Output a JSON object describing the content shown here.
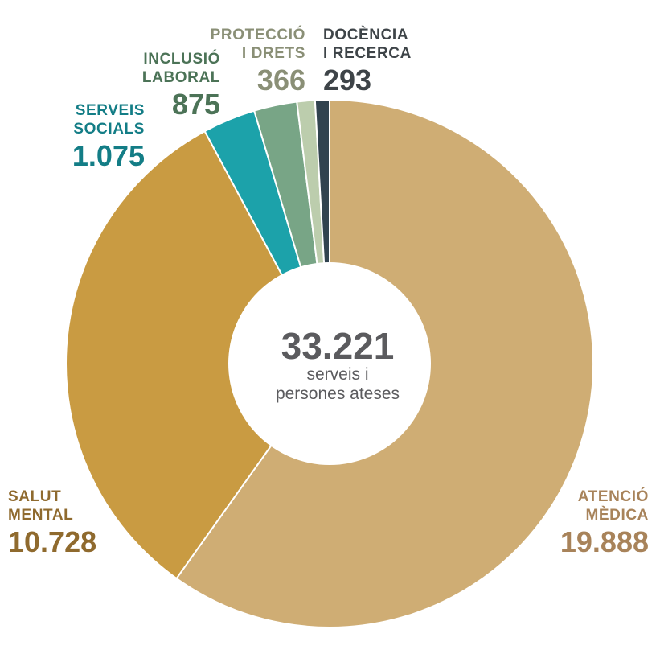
{
  "chart_data": {
    "type": "pie",
    "variant": "donut",
    "start_angle_deg": 0,
    "direction": "clockwise",
    "total": "33.221",
    "total_caption": "serveis i\npersones ateses",
    "slices": [
      {
        "name_line1": "ATENCIÓ",
        "name_line2": "MÈDICA",
        "value": 19888,
        "value_label": "19.888",
        "color": "#cfad74",
        "label_color": "#a8835a"
      },
      {
        "name_line1": "SALUT",
        "name_line2": "MENTAL",
        "value": 10728,
        "value_label": "10.728",
        "color": "#c99b42",
        "label_color": "#8f6a2e"
      },
      {
        "name_line1": "SERVEIS",
        "name_line2": "SOCIALS",
        "value": 1075,
        "value_label": "1.075",
        "color": "#1ca2aa",
        "label_color": "#137d86"
      },
      {
        "name_line1": "INCLUSIÓ",
        "name_line2": "LABORAL",
        "value": 875,
        "value_label": "875",
        "color": "#78a586",
        "label_color": "#4c7357"
      },
      {
        "name_line1": "PROTECCIÓ",
        "name_line2": "I DRETS",
        "value": 366,
        "value_label": "366",
        "color": "#bccdad",
        "label_color": "#8a8f76"
      },
      {
        "name_line1": "DOCÈNCIA",
        "name_line2": "I RECERCA",
        "value": 293,
        "value_label": "293",
        "color": "#31434f",
        "label_color": "#3e4448"
      }
    ]
  }
}
